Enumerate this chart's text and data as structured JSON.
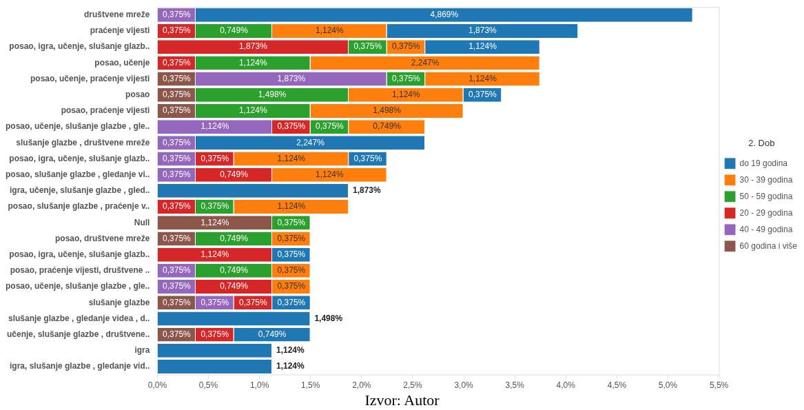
{
  "chart_data": {
    "type": "bar",
    "orientation": "horizontal",
    "stacked": true,
    "categories": [
      "društvene mreže",
      "praćenje vijesti",
      "posao, igra, učenje, slušanje glazb..",
      "posao, učenje",
      "posao, učenje, praćenje vijesti",
      "posao",
      "posao, praćenje vijesti",
      "posao, učenje, slušanje glazbe , gle..",
      "slušanje glazbe , društvene mreže",
      "posao, igra, učenje, slušanje glazb..",
      "posao, slušanje glazbe , gledanje vi..",
      "igra, učenje, slušanje glazbe , gled..",
      "posao, slušanje glazbe , praćenje v..",
      "Null",
      "posao, društvene mreže",
      "posao, igra, učenje, slušanje glazb..",
      "posao, praćenje vijesti, društvene ..",
      "posao, učenje, slušanje glazbe , gle..",
      "slušanje glazbe",
      "slušanje glazbe , gledanje videa , d..",
      "učenje, slušanje glazbe , društvene..",
      "igra",
      "igra, slušanje glazbe , gledanje vid.."
    ],
    "series": [
      {
        "name": "60 godina i više",
        "color": "#8c564b",
        "values": [
          null,
          null,
          null,
          null,
          0.375,
          0.375,
          0.375,
          null,
          null,
          null,
          null,
          null,
          null,
          1.124,
          0.375,
          null,
          null,
          null,
          0.375,
          null,
          0.375,
          null,
          null
        ],
        "value_labels": [
          null,
          null,
          null,
          null,
          "0,375%",
          "0,375%",
          "0,375%",
          null,
          null,
          null,
          null,
          null,
          null,
          "1,124%",
          "0,375%",
          null,
          null,
          null,
          "0,375%",
          null,
          "0,375%",
          null,
          null
        ]
      },
      {
        "name": "40 - 49 godina",
        "color": "#9467bd",
        "values": [
          0.375,
          null,
          null,
          null,
          1.873,
          null,
          null,
          1.124,
          0.375,
          0.375,
          0.375,
          null,
          null,
          null,
          null,
          null,
          0.375,
          0.375,
          0.375,
          null,
          null,
          null,
          null
        ],
        "value_labels": [
          "0,375%",
          null,
          null,
          null,
          "1,873%",
          null,
          null,
          "1,124%",
          "0,375%",
          "0,375%",
          "0,375%",
          null,
          null,
          null,
          null,
          null,
          "0,375%",
          "0,375%",
          "0,375%",
          null,
          null,
          null,
          null
        ]
      },
      {
        "name": "20 - 29 godina",
        "color": "#d62728",
        "values": [
          null,
          0.375,
          1.873,
          0.375,
          null,
          null,
          null,
          0.375,
          null,
          0.375,
          0.749,
          null,
          0.375,
          null,
          null,
          1.124,
          null,
          0.749,
          0.375,
          null,
          0.375,
          null,
          null
        ],
        "value_labels": [
          null,
          "0,375%",
          "1,873%",
          "0,375%",
          null,
          null,
          null,
          "0,375%",
          null,
          "0,375%",
          "0,749%",
          null,
          "0,375%",
          null,
          null,
          "1,124%",
          null,
          "0,749%",
          "0,375%",
          null,
          "0,375%",
          null,
          null
        ]
      },
      {
        "name": "50 - 59 godina",
        "color": "#2ca02c",
        "values": [
          null,
          0.749,
          0.375,
          1.124,
          0.375,
          1.498,
          1.124,
          0.375,
          null,
          null,
          null,
          null,
          0.375,
          0.375,
          0.749,
          null,
          0.749,
          null,
          null,
          null,
          null,
          null,
          null
        ],
        "value_labels": [
          null,
          "0,749%",
          "0,375%",
          "1,124%",
          "0,375%",
          "1,498%",
          "1,124%",
          "0,375%",
          null,
          null,
          null,
          null,
          "0,375%",
          "0,375%",
          "0,749%",
          null,
          "0,749%",
          null,
          null,
          null,
          null,
          null,
          null
        ]
      },
      {
        "name": "30 - 39 godina",
        "color": "#ff7f0e",
        "values": [
          null,
          1.124,
          0.375,
          2.247,
          1.124,
          1.124,
          1.498,
          0.749,
          null,
          1.124,
          1.124,
          null,
          1.124,
          null,
          0.375,
          null,
          0.375,
          0.375,
          null,
          null,
          null,
          null,
          null
        ],
        "value_labels": [
          null,
          "1,124%",
          "0,375%",
          "2,247%",
          "1,124%",
          "1,124%",
          "1,498%",
          "0,749%",
          null,
          "1,124%",
          "1,124%",
          null,
          "1,124%",
          null,
          "0,375%",
          null,
          "0,375%",
          "0,375%",
          null,
          null,
          null,
          null,
          null
        ]
      },
      {
        "name": "do 19 godina",
        "color": "#1f77b4",
        "values": [
          4.869,
          1.873,
          1.124,
          null,
          null,
          0.375,
          null,
          null,
          2.247,
          0.375,
          null,
          1.873,
          null,
          null,
          null,
          0.375,
          null,
          null,
          0.375,
          1.498,
          0.749,
          1.124,
          1.124
        ],
        "value_labels": [
          "4,869%",
          "1,873%",
          "1,124%",
          null,
          null,
          "0,375%",
          null,
          null,
          "2,247%",
          "0,375%",
          null,
          null,
          null,
          null,
          null,
          "0,375%",
          null,
          null,
          "0,375%",
          null,
          "0,749%",
          null,
          null
        ]
      }
    ],
    "totals": [
      null,
      null,
      null,
      null,
      null,
      null,
      null,
      null,
      null,
      null,
      null,
      "1,873%",
      null,
      null,
      null,
      null,
      null,
      null,
      null,
      "1,498%",
      null,
      "1,124%",
      "1,124%"
    ],
    "xlim": [
      0,
      5.5
    ],
    "xticks": [
      {
        "value": 0,
        "label": "0,0%"
      },
      {
        "value": 0.5,
        "label": "0,5%"
      },
      {
        "value": 1,
        "label": "1,0%"
      },
      {
        "value": 1.5,
        "label": "1,5%"
      },
      {
        "value": 2,
        "label": "2,0%"
      },
      {
        "value": 2.5,
        "label": "2,5%"
      },
      {
        "value": 3,
        "label": "3,0%"
      },
      {
        "value": 3.5,
        "label": "3,5%"
      },
      {
        "value": 4,
        "label": "4,0%"
      },
      {
        "value": 4.5,
        "label": "4,5%"
      },
      {
        "value": 5,
        "label": "5,0%"
      },
      {
        "value": 5.5,
        "label": "5,5%"
      }
    ],
    "legend": "right",
    "legend_title": "2. Dob",
    "grid": false,
    "annotations": [
      "Izvor: Autor"
    ]
  }
}
